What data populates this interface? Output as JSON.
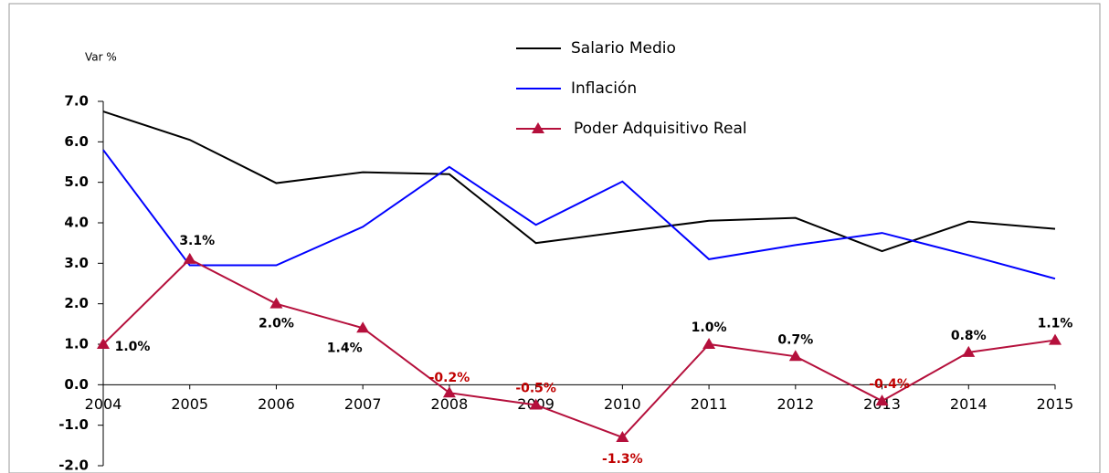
{
  "chart_data": {
    "type": "line",
    "y_label": "Var %",
    "x": [
      "2004",
      "2005",
      "2006",
      "2007",
      "2008",
      "2009",
      "2010",
      "2011",
      "2012",
      "2013",
      "2014",
      "2015"
    ],
    "series": [
      {
        "name": "Salario Medio",
        "color": "#000000",
        "values": [
          6.75,
          6.05,
          4.98,
          5.25,
          5.2,
          3.5,
          3.78,
          4.05,
          4.12,
          3.3,
          4.03,
          3.85
        ]
      },
      {
        "name": "Inflación",
        "color": "#0000ff",
        "values": [
          5.8,
          2.95,
          2.95,
          3.9,
          5.38,
          3.95,
          5.02,
          3.1,
          3.45,
          3.75,
          3.2,
          2.62
        ]
      },
      {
        "name": "Poder Adquisitivo Real",
        "color": "#b5103c",
        "marker": "triangle",
        "values": [
          1.0,
          3.1,
          2.0,
          1.4,
          -0.2,
          -0.5,
          -1.3,
          1.0,
          0.7,
          -0.4,
          0.8,
          1.1
        ],
        "value_labels": [
          "1.0%",
          "3.1%",
          "2.0%",
          "1.4%",
          "-0.2%",
          "-0.5%",
          "-1.3%",
          "1.0%",
          "0.7%",
          "-0.4%",
          "0.8%",
          "1.1%"
        ]
      }
    ],
    "ylim": [
      -2,
      7
    ],
    "yticks": [
      {
        "value": -2,
        "label": "-2.0"
      },
      {
        "value": -1,
        "label": "-1.0"
      },
      {
        "value": 0,
        "label": "0.0"
      },
      {
        "value": 1,
        "label": "1.0"
      },
      {
        "value": 2,
        "label": "2.0"
      },
      {
        "value": 3,
        "label": "3.0"
      },
      {
        "value": 4,
        "label": "4.0"
      },
      {
        "value": 5,
        "label": "5.0"
      },
      {
        "value": 6,
        "label": "6.0"
      },
      {
        "value": 7,
        "label": "7.0"
      }
    ],
    "grid": false
  }
}
